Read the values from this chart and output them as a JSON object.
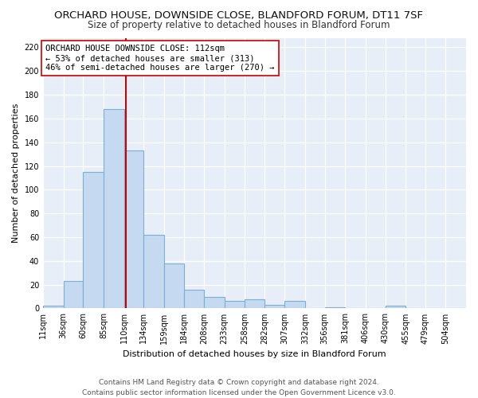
{
  "title": "ORCHARD HOUSE, DOWNSIDE CLOSE, BLANDFORD FORUM, DT11 7SF",
  "subtitle": "Size of property relative to detached houses in Blandford Forum",
  "xlabel": "Distribution of detached houses by size in Blandford Forum",
  "ylabel": "Number of detached properties",
  "bin_labels": [
    "11sqm",
    "36sqm",
    "60sqm",
    "85sqm",
    "110sqm",
    "134sqm",
    "159sqm",
    "184sqm",
    "208sqm",
    "233sqm",
    "258sqm",
    "282sqm",
    "307sqm",
    "332sqm",
    "356sqm",
    "381sqm",
    "406sqm",
    "430sqm",
    "455sqm",
    "479sqm",
    "504sqm"
  ],
  "bin_edges": [
    11,
    36,
    60,
    85,
    110,
    134,
    159,
    184,
    208,
    233,
    258,
    282,
    307,
    332,
    356,
    381,
    406,
    430,
    455,
    479,
    504
  ],
  "bar_heights": [
    2,
    23,
    115,
    168,
    133,
    62,
    38,
    16,
    10,
    6,
    8,
    3,
    6,
    0,
    1,
    0,
    0,
    2,
    0,
    0,
    0
  ],
  "bar_color": "#c5d9f0",
  "bar_edge_color": "#7bafd4",
  "property_size": 112,
  "vline_color": "#cc0000",
  "annotation_line1": "ORCHARD HOUSE DOWNSIDE CLOSE: 112sqm",
  "annotation_line2": "← 53% of detached houses are smaller (313)",
  "annotation_line3": "46% of semi-detached houses are larger (270) →",
  "annotation_box_color": "#ffffff",
  "annotation_box_edge_color": "#cc0000",
  "ylim": [
    0,
    228
  ],
  "yticks": [
    0,
    20,
    40,
    60,
    80,
    100,
    120,
    140,
    160,
    180,
    200,
    220
  ],
  "footer_line1": "Contains HM Land Registry data © Crown copyright and database right 2024.",
  "footer_line2": "Contains public sector information licensed under the Open Government Licence v3.0.",
  "bg_color": "#e8eef8",
  "grid_color": "#ffffff",
  "title_fontsize": 9.5,
  "subtitle_fontsize": 8.5,
  "xlabel_fontsize": 8,
  "ylabel_fontsize": 8,
  "tick_fontsize": 7,
  "footer_fontsize": 6.5,
  "annotation_fontsize": 7.5
}
